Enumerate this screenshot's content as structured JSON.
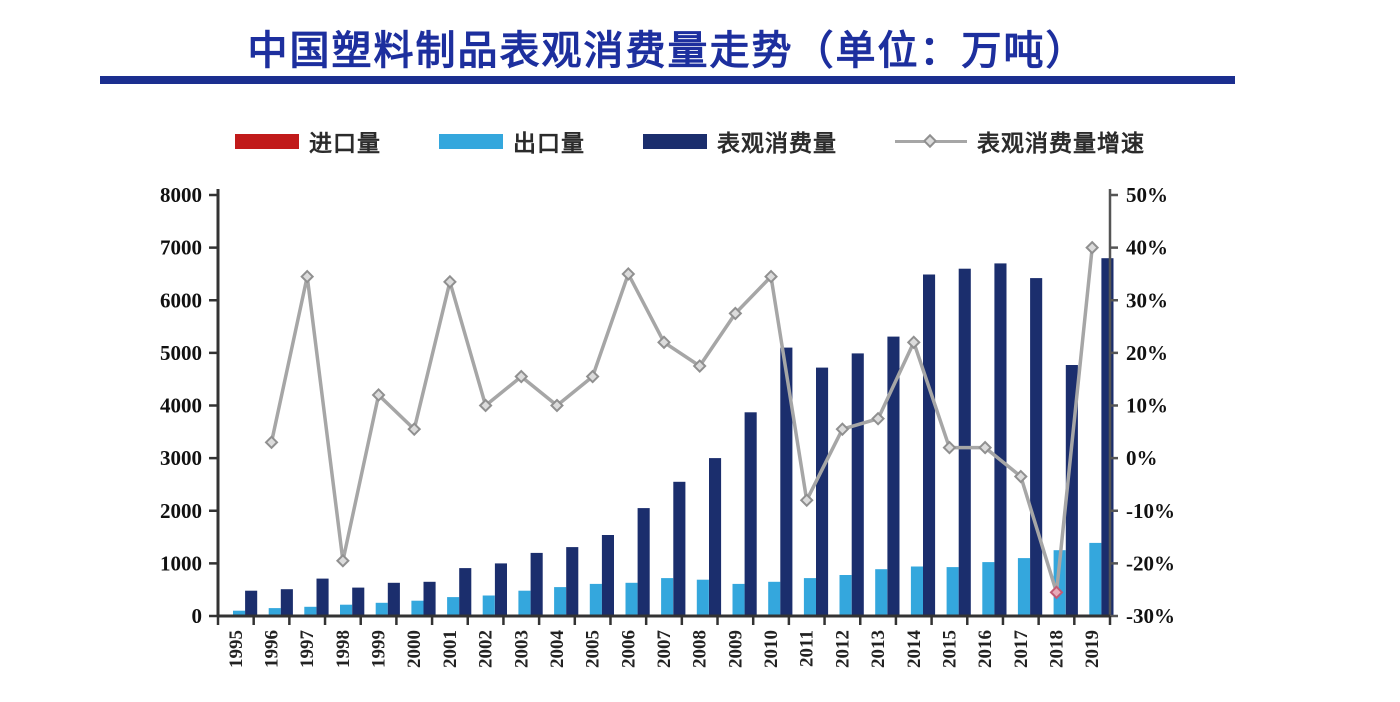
{
  "title": "中国塑料制品表观消费量走势（单位：万吨）",
  "legend": {
    "items": [
      {
        "label": "进口量",
        "type": "bar",
        "color": "#c11a1a"
      },
      {
        "label": "出口量",
        "type": "bar",
        "color": "#34a7dd"
      },
      {
        "label": "表观消费量",
        "type": "bar",
        "color": "#1b2e6d"
      },
      {
        "label": "表观消费量增速",
        "type": "line",
        "color": "#a6a6a6"
      }
    ]
  },
  "chart_data": {
    "type": "bar",
    "subtype": "grouped-bars-with-secondary-axis-line",
    "title": "中国塑料制品表观消费量走势（单位：万吨）",
    "x": [
      "1995",
      "1996",
      "1997",
      "1998",
      "1999",
      "2000",
      "2001",
      "2002",
      "2003",
      "2004",
      "2005",
      "2006",
      "2007",
      "2008",
      "2009",
      "2010",
      "2011",
      "2012",
      "2013",
      "2014",
      "2015",
      "2016",
      "2017",
      "2018",
      "2019"
    ],
    "series": [
      {
        "name": "进口量",
        "axis": "left",
        "color": "#c11a1a",
        "note": "bars are near zero and not visibly rendered at this scale",
        "values": [
          0,
          0,
          0,
          0,
          0,
          0,
          0,
          0,
          0,
          0,
          0,
          0,
          0,
          0,
          0,
          0,
          0,
          0,
          0,
          0,
          0,
          0,
          0,
          0,
          0
        ]
      },
      {
        "name": "出口量",
        "axis": "left",
        "color": "#34a7dd",
        "values": [
          100,
          150,
          175,
          215,
          250,
          290,
          360,
          390,
          480,
          550,
          610,
          630,
          720,
          690,
          610,
          650,
          720,
          780,
          890,
          940,
          930,
          1025,
          1100,
          1250,
          1390
        ]
      },
      {
        "name": "表观消费量",
        "axis": "left",
        "color": "#1b2e6d",
        "values": [
          480,
          510,
          710,
          540,
          630,
          650,
          910,
          1000,
          1200,
          1310,
          1540,
          2050,
          2550,
          3000,
          3870,
          5100,
          4720,
          4990,
          5310,
          6490,
          6600,
          6700,
          6420,
          4770,
          6800
        ]
      }
    ],
    "line_series": {
      "name": "表观消费量增速",
      "axis": "right",
      "color": "#a6a6a6",
      "marker": "diamond",
      "values": [
        null,
        3,
        34.5,
        -19.5,
        12,
        5.5,
        33.5,
        10,
        15.5,
        10,
        15.5,
        35,
        22,
        17.5,
        27.5,
        34.5,
        -8,
        5.5,
        7.5,
        22,
        2,
        2,
        -3.5,
        -25.5,
        40
      ],
      "highlight_marker": {
        "year": "2018",
        "fill": "#e8aab8",
        "stroke": "#c25b74"
      }
    },
    "left_axis": {
      "min": 0,
      "max": 8000,
      "ticks": [
        "0",
        "1000",
        "2000",
        "3000",
        "4000",
        "5000",
        "6000",
        "7000",
        "8000"
      ]
    },
    "right_axis": {
      "min": -30,
      "max": 50,
      "ticks": [
        "-30%",
        "-20%",
        "-10%",
        "0%",
        "10%",
        "20%",
        "30%",
        "40%",
        "50%"
      ]
    },
    "grid": false,
    "legend_position": "top",
    "x_label_rotation": -90
  }
}
